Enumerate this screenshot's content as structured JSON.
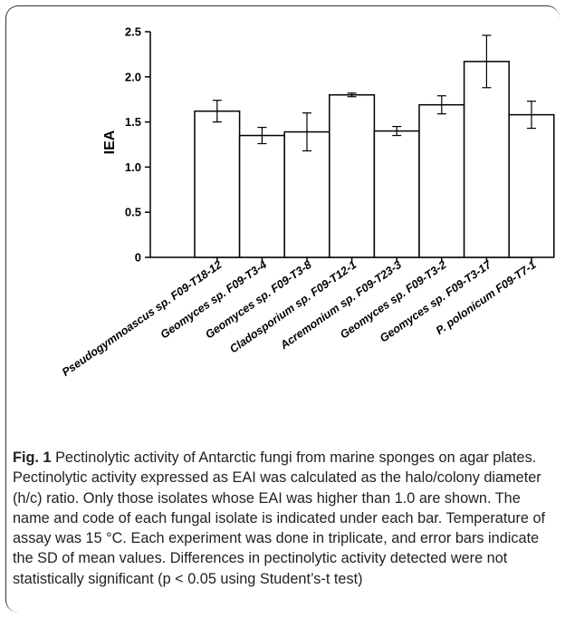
{
  "chart_data": {
    "type": "bar",
    "ylabel": "IEA",
    "ylim": [
      0,
      2.5
    ],
    "yticks": [
      "0",
      "0.5",
      "1.0",
      "1.5",
      "2.0",
      "2.5"
    ],
    "categories": [
      "Pseudogymnoascus sp. F09-T18-12",
      "Geomyces sp. F09-T3-4",
      "Geomyces sp. F09-T3-8",
      "Cladosporium sp. F09-T12-1",
      "Acremonium sp. F09-T23-3",
      "Geomyces sp. F09-T3-2",
      "Geomyces sp. F09-T3-17",
      "P. polonicum F09-T7-1"
    ],
    "values": [
      1.62,
      1.35,
      1.39,
      1.8,
      1.4,
      1.69,
      2.17,
      1.58
    ],
    "errors": [
      0.12,
      0.09,
      0.21,
      0.02,
      0.05,
      0.1,
      0.29,
      0.15
    ],
    "bar_color": "#ffffff",
    "edge_color": "#000000"
  },
  "caption": {
    "label": "Fig. 1",
    "text": "Pectinolytic activity of Antarctic fungi from marine sponges on agar plates. Pectinolytic activity expressed as EAI was calculated as the halo/colony diameter (h/c) ratio. Only those isolates whose EAI was higher than 1.0 are shown. The name and code of each fungal isolate is indicated under each bar. Temperature of assay was 15 °C. Each experiment was done in triplicate, and error bars indicate the SD of mean values. Differences in pectinolytic activity detected were not statistically significant (p < 0.05 using Student’s-t test)"
  }
}
